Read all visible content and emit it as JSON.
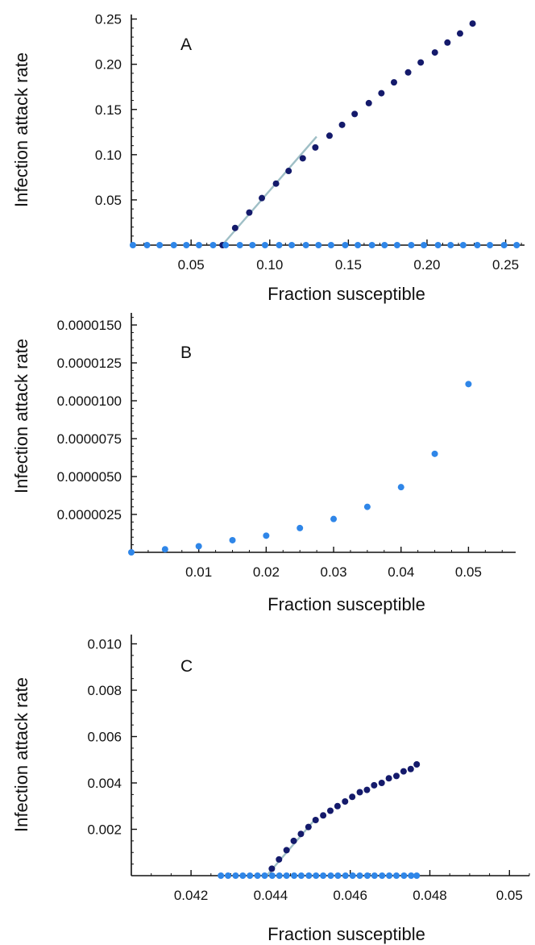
{
  "colors": {
    "light_series": "#2f86e8",
    "dark_series": "#141a6b",
    "tangent": "#9fbfc6",
    "axis": "#111111"
  },
  "chart_data": [
    {
      "type": "scatter",
      "panel_label": "A",
      "xlabel": "Fraction susceptible",
      "ylabel": "Infection attack rate",
      "xlim": [
        0.012,
        0.262
      ],
      "ylim": [
        0,
        0.255
      ],
      "x_ticks": [
        0.05,
        0.1,
        0.15,
        0.2,
        0.25
      ],
      "x_tick_labels": [
        "0.05",
        "0.10",
        "0.15",
        "0.20",
        "0.25"
      ],
      "y_ticks": [
        0.05,
        0.1,
        0.15,
        0.2,
        0.25
      ],
      "y_tick_labels": [
        "0.05",
        "0.10",
        "0.15",
        "0.20",
        "0.25"
      ],
      "series": [
        {
          "color": "dark",
          "x": [
            0.07,
            0.078,
            0.087,
            0.095,
            0.104,
            0.112,
            0.121,
            0.129,
            0.138,
            0.146,
            0.154,
            0.163,
            0.171,
            0.179,
            0.188,
            0.196,
            0.205,
            0.213,
            0.221,
            0.229,
            0.238,
            0.246,
            0.254
          ],
          "y": [
            0.0,
            0.019,
            0.036,
            0.052,
            0.068,
            0.082,
            0.096,
            0.108,
            0.121,
            0.133,
            0.145,
            0.157,
            0.168,
            0.18,
            0.191,
            0.202,
            0.213,
            0.224,
            0.234,
            0.245,
            0.0,
            0.0,
            0.0
          ]
        },
        {
          "color": "light",
          "x": [
            0.013,
            0.022,
            0.03,
            0.039,
            0.047,
            0.055,
            0.064,
            0.072,
            0.081,
            0.089,
            0.097,
            0.106,
            0.114,
            0.123,
            0.131,
            0.139,
            0.148,
            0.156,
            0.165,
            0.173,
            0.181,
            0.19,
            0.198,
            0.207,
            0.215,
            0.223,
            0.232,
            0.24,
            0.249,
            0.257
          ],
          "y": [
            0,
            0,
            0,
            0,
            0,
            0,
            0,
            0,
            0,
            0,
            0,
            0,
            0,
            0,
            0,
            0,
            0,
            0,
            0,
            0,
            0,
            0,
            0,
            0,
            0,
            0,
            0,
            0,
            0,
            0
          ]
        }
      ],
      "tangent_line": {
        "x": [
          0.0698,
          0.1298
        ],
        "y": [
          0.0,
          0.12
        ]
      }
    },
    {
      "type": "scatter",
      "panel_label": "B",
      "xlabel": "Fraction susceptible",
      "ylabel": "Infection attack rate",
      "xlim": [
        0,
        0.057
      ],
      "ylim": [
        0,
        1.58e-05
      ],
      "x_ticks": [
        0.01,
        0.02,
        0.03,
        0.04,
        0.05
      ],
      "x_tick_labels": [
        "0.01",
        "0.02",
        "0.03",
        "0.04",
        "0.05"
      ],
      "y_ticks": [
        2.5e-06,
        5e-06,
        7.5e-06,
        1e-05,
        1.25e-05,
        1.5e-05
      ],
      "y_tick_labels": [
        "0.0000025",
        "0.0000050",
        "0.0000075",
        "0.0000100",
        "0.0000125",
        "0.0000150"
      ],
      "series": [
        {
          "color": "light",
          "x": [
            0.0,
            0.005,
            0.01,
            0.015,
            0.02,
            0.025,
            0.03,
            0.035,
            0.04,
            0.045,
            0.05
          ],
          "y": [
            0.0,
            2e-07,
            4e-07,
            8e-07,
            1.1e-06,
            1.6e-06,
            2.2e-06,
            3e-06,
            4.3e-06,
            6.5e-06,
            1.11e-05
          ]
        }
      ]
    },
    {
      "type": "scatter",
      "panel_label": "C",
      "xlabel": "Fraction susceptible",
      "ylabel": "Infection attack rate",
      "xlim": [
        0.0405,
        0.0505
      ],
      "ylim": [
        0,
        0.0104
      ],
      "x_ticks": [
        0.042,
        0.044,
        0.046,
        0.048,
        0.05
      ],
      "x_tick_labels": [
        "0.042",
        "0.044",
        "0.046",
        "0.048",
        "0.05"
      ],
      "y_ticks": [
        0.002,
        0.004,
        0.006,
        0.008,
        0.01
      ],
      "y_tick_labels": [
        "0.002",
        "0.004",
        "0.006",
        "0.008",
        "0.010"
      ],
      "series": [
        {
          "color": "dark",
          "x": [
            0.04403,
            0.04421,
            0.0444,
            0.04458,
            0.04476,
            0.04495,
            0.04513,
            0.04532,
            0.0455,
            0.04568,
            0.04587,
            0.04605,
            0.04624,
            0.04642,
            0.0466,
            0.04679,
            0.04697,
            0.04716,
            0.04734,
            0.04752,
            0.04767
          ],
          "y": [
            0.0003,
            0.0007,
            0.0011,
            0.0015,
            0.0018,
            0.0021,
            0.0024,
            0.0026,
            0.0028,
            0.003,
            0.0032,
            0.0034,
            0.0036,
            0.0037,
            0.0039,
            0.004,
            0.0042,
            0.0043,
            0.0045,
            0.0046,
            0.0048
          ]
        },
        {
          "color": "light",
          "x": [
            0.04275,
            0.04293,
            0.04312,
            0.0433,
            0.04348,
            0.04367,
            0.04385,
            0.04404,
            0.04422,
            0.0444,
            0.04459,
            0.04477,
            0.04496,
            0.04514,
            0.04532,
            0.04551,
            0.04569,
            0.04588,
            0.04606,
            0.04624,
            0.04643,
            0.04661,
            0.0468,
            0.04698,
            0.04716,
            0.04735,
            0.04753,
            0.04767
          ],
          "y": [
            0,
            0,
            0,
            0,
            0,
            0,
            0,
            0,
            0,
            0,
            0,
            0,
            0,
            0,
            0,
            0,
            0,
            0,
            0,
            0,
            0,
            0,
            0,
            0,
            0,
            0,
            0,
            0
          ]
        }
      ],
      "tangent_line": {
        "x": [
          0.0439,
          0.0451
        ],
        "y": [
          0.0,
          0.0024
        ]
      }
    }
  ]
}
